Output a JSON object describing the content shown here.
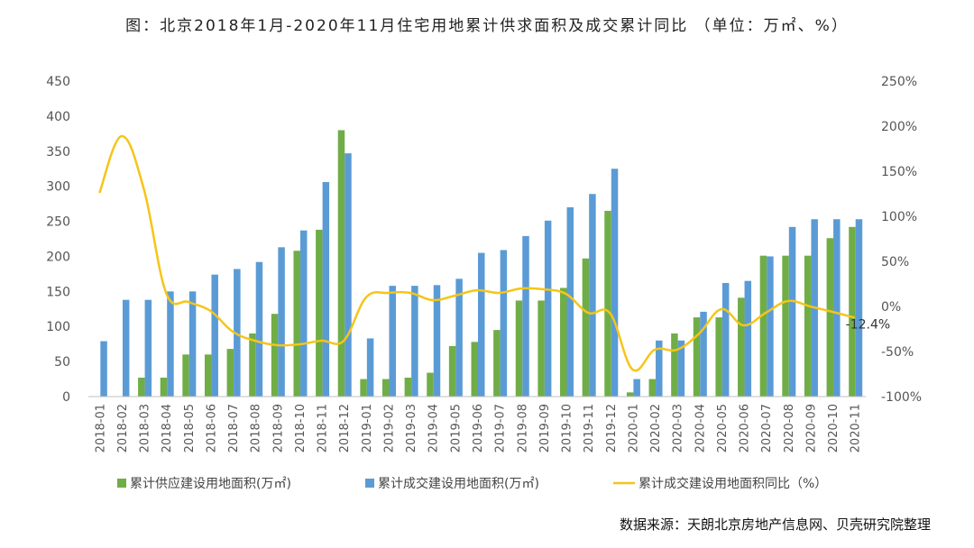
{
  "title": "图：北京2018年1月-2020年11月住宅用地累计供求面积及成交累计同比  （单位：万㎡、%）",
  "source": "数据来源：天朗北京房地产信息网、贝壳研究院整理",
  "chart_data": {
    "type": "bar",
    "categories": [
      "2018-01",
      "2018-02",
      "2018-03",
      "2018-04",
      "2018-05",
      "2018-06",
      "2018-07",
      "2018-08",
      "2018-09",
      "2018-10",
      "2018-11",
      "2018-12",
      "2019-01",
      "2019-02",
      "2019-03",
      "2019-04",
      "2019-05",
      "2019-06",
      "2019-07",
      "2019-08",
      "2019-09",
      "2019-10",
      "2019-11",
      "2019-12",
      "2020-01",
      "2020-02",
      "2020-03",
      "2020-04",
      "2020-05",
      "2020-06",
      "2020-07",
      "2020-08",
      "2020-09",
      "2020-10",
      "2020-11"
    ],
    "series": [
      {
        "name": "累计供应建设用地面积(万㎡)",
        "kind": "bar",
        "axis": "left",
        "color": "#70ad47",
        "values": [
          0,
          0,
          27,
          27,
          60,
          60,
          68,
          90,
          118,
          208,
          238,
          380,
          25,
          25,
          27,
          34,
          72,
          78,
          95,
          137,
          137,
          155,
          197,
          265,
          6,
          25,
          90,
          113,
          113,
          141,
          201,
          201,
          201,
          226,
          242
        ]
      },
      {
        "name": "累计成交建设用地面积(万㎡)",
        "kind": "bar",
        "axis": "left",
        "color": "#5b9bd5",
        "values": [
          79,
          138,
          138,
          150,
          150,
          174,
          182,
          192,
          213,
          237,
          306,
          347,
          83,
          158,
          158,
          159,
          168,
          205,
          209,
          229,
          251,
          270,
          289,
          325,
          25,
          80,
          80,
          121,
          162,
          165,
          200,
          242,
          253,
          253,
          253
        ]
      },
      {
        "name": "累计成交建设用地面积同比（%）",
        "kind": "line",
        "axis": "right",
        "color": "#f5c518",
        "values": [
          126,
          189,
          130,
          15,
          5,
          -5,
          -28,
          -38,
          -43,
          -42,
          -38,
          -38,
          10,
          15,
          15,
          7,
          12,
          18,
          15,
          20,
          19,
          14,
          -7,
          -8,
          -70,
          -48,
          -48,
          -30,
          -3,
          -21,
          -7,
          6,
          0,
          -6,
          -12.4
        ]
      }
    ],
    "y_left": {
      "min": 0,
      "max": 450,
      "ticks": [
        0,
        50,
        100,
        150,
        200,
        250,
        300,
        350,
        400,
        450
      ]
    },
    "y_right": {
      "min": -100,
      "max": 250,
      "ticks": [
        "-100%",
        "-50%",
        "0%",
        "50%",
        "100%",
        "150%",
        "200%",
        "250%"
      ]
    },
    "annotations": [
      {
        "series": 2,
        "index": 34,
        "text": "-12.4%"
      }
    ],
    "legend_position": "bottom",
    "grid": false
  }
}
